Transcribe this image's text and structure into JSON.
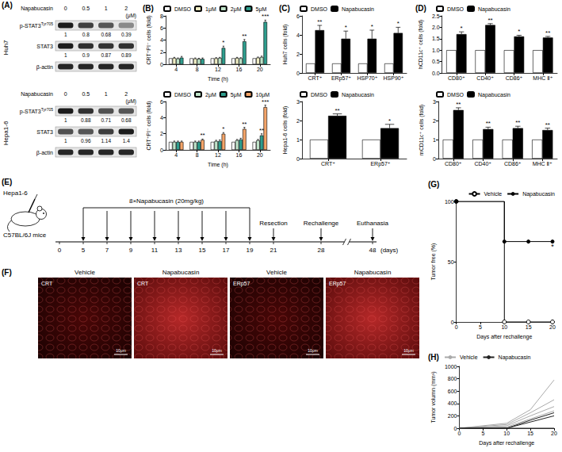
{
  "blots": {
    "title": "(A)",
    "panels": [
      {
        "cell_line": "Huh7",
        "treatment": "Napabucasin",
        "unit": "(μM)",
        "doses": [
          0,
          0.5,
          1,
          2
        ],
        "rows": [
          {
            "name": "p-STAT3",
            "sup": "Tyr705",
            "values": [
              1,
              0.8,
              0.68,
              0.39
            ]
          },
          {
            "name": "STAT3",
            "values": [
              1,
              0.9,
              0.87,
              0.89
            ]
          },
          {
            "name": "β-actin"
          }
        ]
      },
      {
        "cell_line": "Hepa1-6",
        "treatment": "Napabucasin",
        "unit": "(μM)",
        "doses": [
          0,
          0.5,
          1,
          2
        ],
        "rows": [
          {
            "name": "p-STAT3",
            "sup": "Tyr705",
            "values": [
              1,
              0.88,
              0.71,
              0.68
            ]
          },
          {
            "name": "STAT3",
            "values": [
              1,
              0.96,
              1.14,
              1.4
            ]
          },
          {
            "name": "β-actin"
          }
        ]
      }
    ]
  },
  "timeline": {
    "title": "(E)",
    "cell_line": "Hepa1-6",
    "mice": "C57BL/6J mice",
    "treatment": "8×Napabucasin (20mg/kg)",
    "dose_days": [
      5,
      7,
      9,
      11,
      13,
      15,
      17,
      19
    ],
    "events": [
      {
        "day": 21,
        "label": "Resection"
      },
      {
        "day": 28,
        "label": "Rechallenge"
      },
      {
        "day": 48,
        "label": "Euthanasia"
      }
    ],
    "ticks": [
      0,
      5,
      7,
      9,
      11,
      13,
      15,
      17,
      19,
      21,
      28,
      48
    ],
    "unit": "(days)"
  },
  "images": {
    "title": "(F)",
    "scale_bar": "10μm",
    "panels": [
      {
        "group": "Vehicle",
        "stain": "CRT"
      },
      {
        "group": "Napabucasin",
        "stain": "CRT"
      },
      {
        "group": "Vehicle",
        "stain": "ERp57"
      },
      {
        "group": "Napabucasin",
        "stain": "ERp57"
      }
    ]
  },
  "chart_data": [
    {
      "title": "(B)",
      "type": "bar",
      "categories": [
        4,
        8,
        12,
        16,
        20
      ],
      "x_label": "Time (h)",
      "y_label": "CRT⁺PI⁻ cells (fold)",
      "ylim": [
        0,
        8
      ],
      "yticks": [
        0,
        2,
        4,
        6,
        8
      ],
      "grid": false,
      "legend": "top",
      "series": [
        {
          "name": "DMSO",
          "color": "#ffffff",
          "values": [
            1,
            1,
            1,
            1,
            1
          ]
        },
        {
          "name": "1μM",
          "color": "#efedc4",
          "values": [
            1.05,
            0.95,
            1.0,
            1.05,
            1.1
          ],
          "errors": [
            0.1,
            0.1,
            0.1,
            0.1,
            0.1
          ]
        },
        {
          "name": "2μM",
          "color": "#bfe3c9",
          "values": [
            0.95,
            0.9,
            1.05,
            1.0,
            1.2
          ],
          "errors": [
            0.1,
            0.1,
            0.1,
            0.1,
            0.15
          ]
        },
        {
          "name": "5μM",
          "color": "#2e9e8e",
          "values": [
            1.1,
            0.9,
            2.7,
            3.8,
            7.0
          ],
          "errors": [
            0.2,
            0.15,
            0.3,
            0.3,
            0.3
          ],
          "annotations": [
            null,
            null,
            "*",
            "**",
            "***"
          ]
        }
      ]
    },
    {
      "type": "bar",
      "categories": [
        4,
        8,
        12,
        16,
        20
      ],
      "x_label": "Time (h)",
      "y_label": "CRT⁺PI⁻ cells (fold)",
      "ylim": [
        0,
        6
      ],
      "yticks": [
        0,
        2,
        4,
        6
      ],
      "grid": false,
      "legend": "top",
      "series": [
        {
          "name": "DMSO",
          "color": "#ffffff",
          "values": [
            1,
            1,
            1,
            1,
            1
          ]
        },
        {
          "name": "2μM",
          "color": "#bfe3c9",
          "values": [
            1.0,
            1.0,
            1.1,
            1.2,
            1.2
          ],
          "errors": [
            0.1,
            0.1,
            0.1,
            0.1,
            0.1
          ]
        },
        {
          "name": "5μM",
          "color": "#2e9e8e",
          "values": [
            1.0,
            1.0,
            1.1,
            1.3,
            1.8
          ],
          "errors": [
            0.1,
            0.1,
            0.15,
            0.15,
            0.2
          ],
          "annotations": [
            null,
            null,
            null,
            null,
            "**"
          ]
        },
        {
          "name": "10μM",
          "color": "#f4a468",
          "values": [
            1.0,
            1.25,
            2.0,
            2.6,
            5.3
          ],
          "errors": [
            0.1,
            0.1,
            0.15,
            0.2,
            0.25
          ],
          "annotations": [
            null,
            "**",
            "*",
            "**",
            "***"
          ]
        }
      ]
    },
    {
      "title": "(C)",
      "type": "bar",
      "categories": [
        "CRT⁺",
        "ERp57⁺",
        "HSP70⁺",
        "HSP90⁺"
      ],
      "y_label": "Huh7 cells (fold)",
      "ylim": [
        0,
        6
      ],
      "yticks": [
        0,
        2,
        4,
        6
      ],
      "grid": false,
      "legend": "top",
      "series": [
        {
          "name": "DMSO",
          "color": "#ffffff",
          "values": [
            1,
            1,
            1,
            1
          ]
        },
        {
          "name": "Napabucasin",
          "color": "#000000",
          "values": [
            4.5,
            3.6,
            3.6,
            4.2
          ],
          "errors": [
            0.5,
            0.8,
            0.9,
            0.6
          ],
          "annotations": [
            "**",
            "*",
            "*",
            "*"
          ]
        }
      ]
    },
    {
      "type": "bar",
      "categories": [
        "CRT⁺",
        "ERp57⁺"
      ],
      "y_label": "Hepa1-6 cells (fold)",
      "ylim": [
        0,
        3
      ],
      "yticks": [
        0,
        1,
        2,
        3
      ],
      "grid": false,
      "legend": "top",
      "series": [
        {
          "name": "DMSO",
          "color": "#ffffff",
          "values": [
            1,
            1
          ]
        },
        {
          "name": "Napabucasin",
          "color": "#000000",
          "values": [
            2.25,
            1.6
          ],
          "errors": [
            0.1,
            0.2
          ],
          "annotations": [
            "**",
            "*"
          ]
        }
      ]
    },
    {
      "title": "(D)",
      "type": "bar",
      "categories": [
        "CD80⁺",
        "CD40⁺",
        "CD86⁺",
        "MHC Ⅱ⁺"
      ],
      "y_label": "hCD11c⁺ cells (fold)",
      "ylim": [
        0,
        2.5
      ],
      "yticks": [
        {
          "value": 0,
          "label": "0.0"
        },
        0.5,
        {
          "value": 1,
          "label": "1.0"
        },
        1.5,
        {
          "value": 2,
          "label": "2.0"
        },
        2.5
      ],
      "grid": false,
      "legend": "top",
      "series": [
        {
          "name": "DMSO",
          "color": "#ffffff",
          "values": [
            1,
            1,
            1,
            1
          ]
        },
        {
          "name": "Napabucasin",
          "color": "#000000",
          "values": [
            1.7,
            2.1,
            1.6,
            1.55
          ],
          "errors": [
            0.1,
            0.06,
            0.05,
            0.05
          ],
          "annotations": [
            "*",
            "**",
            "*",
            "**"
          ]
        }
      ]
    },
    {
      "type": "bar",
      "categories": [
        "CD80⁺",
        "CD40⁺",
        "CD86⁺",
        "MHC Ⅱ⁺"
      ],
      "y_label": "mCD11c⁺ cells (fold)",
      "ylim": [
        0,
        3
      ],
      "yticks": [
        0,
        1,
        2,
        3
      ],
      "grid": false,
      "legend": "top",
      "series": [
        {
          "name": "DMSO",
          "color": "#ffffff",
          "values": [
            1,
            1,
            1,
            1
          ]
        },
        {
          "name": "Napabucasin",
          "color": "#000000",
          "values": [
            2.55,
            1.55,
            1.6,
            1.5
          ],
          "errors": [
            0.12,
            0.1,
            0.1,
            0.1
          ],
          "annotations": [
            "**",
            "**",
            "**",
            "**"
          ]
        }
      ]
    },
    {
      "title": "(G)",
      "type": "step",
      "x": [
        0,
        10,
        15,
        20
      ],
      "x_label": "Days after rechallenge",
      "y_label": "Tumor free (%)",
      "xlim": [
        0,
        20
      ],
      "xticks": [
        0,
        5,
        10,
        15,
        20
      ],
      "ylim": [
        0,
        100
      ],
      "yticks": [
        0,
        50,
        100
      ],
      "grid": false,
      "legend": "top-right",
      "series": [
        {
          "name": "Vehicle",
          "color": "#000000",
          "marker": "circle_open",
          "values": [
            100,
            0,
            0,
            0
          ]
        },
        {
          "name": "Napabucasin",
          "color": "#000000",
          "marker": "circle",
          "values": [
            100,
            66.7,
            66.7,
            66.7
          ]
        }
      ],
      "annotations": [
        {
          "text": "*",
          "x": 20,
          "y": 66.7
        }
      ]
    },
    {
      "title": "(H)",
      "type": "line",
      "x": [
        0,
        10,
        15,
        20
      ],
      "x_label": "Days after rechallenge",
      "y_label": "Tumor volumn (mm³)",
      "xlim": [
        0,
        20
      ],
      "xticks": [
        0,
        5,
        10,
        15,
        20
      ],
      "ylim": [
        0,
        1000
      ],
      "yticks": [
        0,
        200,
        400,
        600,
        800,
        1000
      ],
      "grid": false,
      "legend": "top-left",
      "series": [
        {
          "name": "Vehicle",
          "color": "#aaaaaa",
          "values": [
            0,
            80,
            300,
            780
          ]
        },
        {
          "name": "Vehicle",
          "color": "#aaaaaa",
          "values": [
            0,
            60,
            250,
            460
          ]
        },
        {
          "name": "Vehicle",
          "color": "#aaaaaa",
          "values": [
            0,
            40,
            200,
            350
          ]
        },
        {
          "name": "Vehicle",
          "color": "#aaaaaa",
          "values": [
            0,
            20,
            150,
            280
          ]
        },
        {
          "name": "Napabucasin",
          "color": "#222222",
          "values": [
            0,
            0,
            130,
            250
          ]
        },
        {
          "name": "Napabucasin",
          "color": "#222222",
          "values": [
            0,
            0,
            100,
            200
          ]
        },
        {
          "name": "Napabucasin",
          "color": "#222222",
          "values": [
            0,
            0,
            0,
            0
          ]
        }
      ]
    }
  ]
}
